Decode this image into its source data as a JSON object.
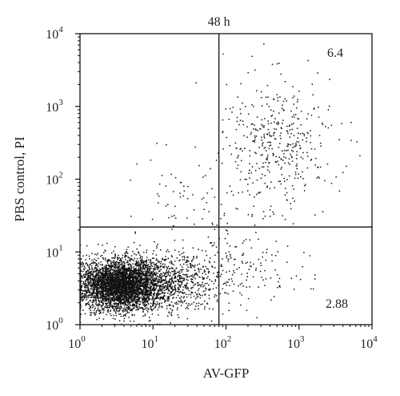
{
  "chart_data": {
    "type": "scatter",
    "title": "48 h",
    "xlabel": "AV-GFP",
    "ylabel": "PBS control, PI",
    "xscale": "log",
    "yscale": "log",
    "xlim": [
      1,
      10000
    ],
    "ylim": [
      1,
      10000
    ],
    "x_ticks": [
      {
        "base": "10",
        "exp": "0",
        "value": 1
      },
      {
        "base": "10",
        "exp": "1",
        "value": 10
      },
      {
        "base": "10",
        "exp": "2",
        "value": 100
      },
      {
        "base": "10",
        "exp": "3",
        "value": 1000
      },
      {
        "base": "10",
        "exp": "4",
        "value": 10000
      }
    ],
    "y_ticks": [
      {
        "base": "10",
        "exp": "0",
        "value": 1
      },
      {
        "base": "10",
        "exp": "1",
        "value": 10
      },
      {
        "base": "10",
        "exp": "2",
        "value": 100
      },
      {
        "base": "10",
        "exp": "3",
        "value": 1000
      },
      {
        "base": "10",
        "exp": "4",
        "value": 10000
      }
    ],
    "gates": {
      "x": 80,
      "y": 22
    },
    "quadrant_labels": {
      "upper_right": "6.4",
      "lower_right": "2.88"
    },
    "grid": false,
    "legend": "none",
    "point_color": "#111111",
    "clusters": [
      {
        "region": "lower-left",
        "x_center": 3.5,
        "y_center": 3.5,
        "x_spread_log": 0.28,
        "y_spread_log": 0.17,
        "count": 3800
      },
      {
        "region": "lower-left-tail",
        "x_center": 15,
        "y_center": 4,
        "x_spread_log": 0.4,
        "y_spread_log": 0.22,
        "count": 900
      },
      {
        "region": "lower-right",
        "x_center": 180,
        "y_center": 6,
        "x_spread_log": 0.45,
        "y_spread_log": 0.3,
        "count": 140
      },
      {
        "region": "upper-right",
        "x_center": 500,
        "y_center": 300,
        "x_spread_log": 0.38,
        "y_spread_log": 0.45,
        "count": 420
      },
      {
        "region": "upper-left",
        "x_center": 30,
        "y_center": 60,
        "x_spread_log": 0.35,
        "y_spread_log": 0.35,
        "count": 60
      }
    ]
  }
}
